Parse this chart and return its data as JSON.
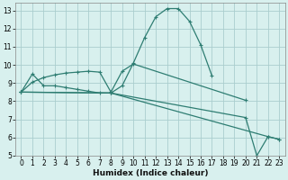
{
  "xlabel": "Humidex (Indice chaleur)",
  "bg_color": "#d8f0ee",
  "grid_color": "#aacece",
  "line_color": "#2e7d72",
  "xlim": [
    -0.5,
    23.5
  ],
  "ylim": [
    5,
    13.4
  ],
  "xticks": [
    0,
    1,
    2,
    3,
    4,
    5,
    6,
    7,
    8,
    9,
    10,
    11,
    12,
    13,
    14,
    15,
    16,
    17,
    18,
    19,
    20,
    21,
    22,
    23
  ],
  "yticks": [
    5,
    6,
    7,
    8,
    9,
    10,
    11,
    12,
    13
  ],
  "s1x": [
    0,
    1,
    2,
    3,
    4,
    5,
    6,
    7,
    8,
    9,
    10,
    11,
    12,
    13,
    14,
    15,
    16,
    17
  ],
  "s1y": [
    8.5,
    9.5,
    8.85,
    8.85,
    8.75,
    8.65,
    8.55,
    8.45,
    8.45,
    8.85,
    10.1,
    11.5,
    12.65,
    13.1,
    13.1,
    12.4,
    11.1,
    9.4
  ],
  "s2x": [
    0,
    1,
    2,
    3,
    4,
    5,
    6,
    7,
    8,
    9,
    10,
    20
  ],
  "s2y": [
    8.5,
    9.05,
    9.3,
    9.45,
    9.55,
    9.6,
    9.65,
    9.6,
    8.5,
    9.65,
    10.05,
    8.05
  ],
  "s3x": [
    0,
    8,
    20,
    21,
    22,
    23
  ],
  "s3y": [
    8.5,
    8.45,
    7.1,
    5.0,
    6.05,
    5.9
  ],
  "s4x": [
    0,
    8,
    22,
    23
  ],
  "s4y": [
    8.5,
    8.45,
    6.05,
    5.9
  ]
}
